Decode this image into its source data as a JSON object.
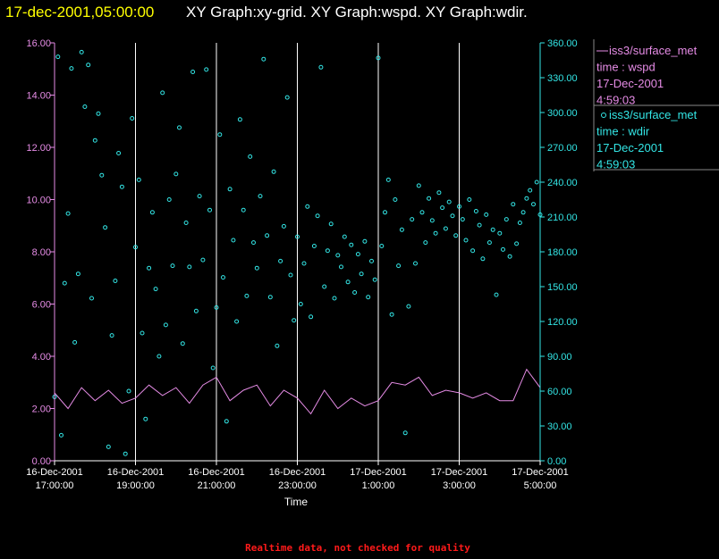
{
  "header": {
    "timestamp": "17-dec-2001,05:00:00",
    "graphs_text": "XY Graph:xy-grid.  XY Graph:wspd.  XY Graph:wdir."
  },
  "footer": {
    "quality_note": "Realtime data, not checked for quality"
  },
  "legend": [
    {
      "symbol": "line",
      "source": "iss3/surface_met",
      "series": "time : wspd",
      "date": "17-Dec-2001",
      "time": "4:59:03",
      "color": "#e68ce6"
    },
    {
      "symbol": "circle",
      "source": "iss3/surface_met",
      "series": "time : wdir",
      "date": "17-Dec-2001",
      "time": "4:59:03",
      "color": "#33e6e6"
    }
  ],
  "colors": {
    "background": "#000000",
    "left_axis": "#e68ce6",
    "right_axis": "#33e6e6",
    "grid": "#ffffff",
    "timestamp": "#ffff00",
    "quality_note": "#ff1a1a"
  },
  "chart_data": {
    "type": "scatter",
    "xlabel": "Time",
    "x_range": [
      "2001-12-16 17:00:00",
      "2001-12-17 05:00:00"
    ],
    "x_ticks": [
      {
        "t": "2001-12-16 17:00:00",
        "date": "16-Dec-2001",
        "time": "17:00:00"
      },
      {
        "t": "2001-12-16 19:00:00",
        "date": "16-Dec-2001",
        "time": "19:00:00"
      },
      {
        "t": "2001-12-16 21:00:00",
        "date": "16-Dec-2001",
        "time": "21:00:00"
      },
      {
        "t": "2001-12-16 23:00:00",
        "date": "16-Dec-2001",
        "time": "23:00:00"
      },
      {
        "t": "2001-12-17 01:00:00",
        "date": "17-Dec-2001",
        "time": "1:00:00"
      },
      {
        "t": "2001-12-17 03:00:00",
        "date": "17-Dec-2001",
        "time": "3:00:00"
      },
      {
        "t": "2001-12-17 05:00:00",
        "date": "17-Dec-2001",
        "time": "5:00:00"
      }
    ],
    "y_left": {
      "ylim": [
        0,
        16
      ],
      "ticks": [
        "0.00",
        "2.00",
        "4.00",
        "6.00",
        "8.00",
        "10.00",
        "12.00",
        "14.00",
        "16.00"
      ]
    },
    "y_right": {
      "ylim": [
        0,
        360
      ],
      "ticks": [
        "0.00",
        "30.00",
        "60.00",
        "90.00",
        "120.00",
        "150.00",
        "180.00",
        "210.00",
        "240.00",
        "270.00",
        "300.00",
        "330.00",
        "360.00"
      ]
    },
    "grid": "vertical",
    "series": [
      {
        "name": "time : wspd",
        "type": "line",
        "axis": "left",
        "points": [
          [
            "2001-12-16 17:00:00",
            2.6
          ],
          [
            "2001-12-16 17:20:00",
            2.0
          ],
          [
            "2001-12-16 17:40:00",
            2.8
          ],
          [
            "2001-12-16 18:00:00",
            2.3
          ],
          [
            "2001-12-16 18:20:00",
            2.7
          ],
          [
            "2001-12-16 18:40:00",
            2.2
          ],
          [
            "2001-12-16 19:00:00",
            2.4
          ],
          [
            "2001-12-16 19:20:00",
            2.9
          ],
          [
            "2001-12-16 19:40:00",
            2.5
          ],
          [
            "2001-12-16 20:00:00",
            2.8
          ],
          [
            "2001-12-16 20:20:00",
            2.2
          ],
          [
            "2001-12-16 20:40:00",
            2.9
          ],
          [
            "2001-12-16 21:00:00",
            3.2
          ],
          [
            "2001-12-16 21:20:00",
            2.3
          ],
          [
            "2001-12-16 21:40:00",
            2.7
          ],
          [
            "2001-12-16 22:00:00",
            2.9
          ],
          [
            "2001-12-16 22:20:00",
            2.1
          ],
          [
            "2001-12-16 22:40:00",
            2.7
          ],
          [
            "2001-12-16 23:00:00",
            2.4
          ],
          [
            "2001-12-16 23:20:00",
            1.8
          ],
          [
            "2001-12-16 23:40:00",
            2.7
          ],
          [
            "2001-12-17 00:00:00",
            2.0
          ],
          [
            "2001-12-17 00:20:00",
            2.4
          ],
          [
            "2001-12-17 00:40:00",
            2.1
          ],
          [
            "2001-12-17 01:00:00",
            2.3
          ],
          [
            "2001-12-17 01:20:00",
            3.0
          ],
          [
            "2001-12-17 01:40:00",
            2.9
          ],
          [
            "2001-12-17 02:00:00",
            3.2
          ],
          [
            "2001-12-17 02:20:00",
            2.5
          ],
          [
            "2001-12-17 02:40:00",
            2.7
          ],
          [
            "2001-12-17 03:00:00",
            2.6
          ],
          [
            "2001-12-17 03:20:00",
            2.4
          ],
          [
            "2001-12-17 03:40:00",
            2.6
          ],
          [
            "2001-12-17 04:00:00",
            2.3
          ],
          [
            "2001-12-17 04:20:00",
            2.3
          ],
          [
            "2001-12-17 04:40:00",
            3.5
          ],
          [
            "2001-12-17 05:00:00",
            2.8
          ]
        ]
      },
      {
        "name": "time : wdir",
        "type": "scatter",
        "axis": "right",
        "points": [
          [
            "2001-12-16 17:00:00",
            55
          ],
          [
            "2001-12-16 17:05:00",
            348
          ],
          [
            "2001-12-16 17:10:00",
            22
          ],
          [
            "2001-12-16 17:15:00",
            153
          ],
          [
            "2001-12-16 17:20:00",
            213
          ],
          [
            "2001-12-16 17:25:00",
            338
          ],
          [
            "2001-12-16 17:30:00",
            102
          ],
          [
            "2001-12-16 17:35:00",
            161
          ],
          [
            "2001-12-16 17:40:00",
            352
          ],
          [
            "2001-12-16 17:45:00",
            305
          ],
          [
            "2001-12-16 17:50:00",
            341
          ],
          [
            "2001-12-16 17:55:00",
            140
          ],
          [
            "2001-12-16 18:00:00",
            276
          ],
          [
            "2001-12-16 18:05:00",
            299
          ],
          [
            "2001-12-16 18:10:00",
            246
          ],
          [
            "2001-12-16 18:15:00",
            201
          ],
          [
            "2001-12-16 18:20:00",
            12
          ],
          [
            "2001-12-16 18:25:00",
            108
          ],
          [
            "2001-12-16 18:30:00",
            155
          ],
          [
            "2001-12-16 18:35:00",
            265
          ],
          [
            "2001-12-16 18:40:00",
            236
          ],
          [
            "2001-12-16 18:45:00",
            6
          ],
          [
            "2001-12-16 18:50:00",
            60
          ],
          [
            "2001-12-16 18:55:00",
            295
          ],
          [
            "2001-12-16 19:00:00",
            184
          ],
          [
            "2001-12-16 19:05:00",
            242
          ],
          [
            "2001-12-16 19:10:00",
            110
          ],
          [
            "2001-12-16 19:15:00",
            36
          ],
          [
            "2001-12-16 19:20:00",
            166
          ],
          [
            "2001-12-16 19:25:00",
            214
          ],
          [
            "2001-12-16 19:30:00",
            148
          ],
          [
            "2001-12-16 19:35:00",
            90
          ],
          [
            "2001-12-16 19:40:00",
            317
          ],
          [
            "2001-12-16 19:45:00",
            117
          ],
          [
            "2001-12-16 19:50:00",
            225
          ],
          [
            "2001-12-16 19:55:00",
            168
          ],
          [
            "2001-12-16 20:00:00",
            247
          ],
          [
            "2001-12-16 20:05:00",
            287
          ],
          [
            "2001-12-16 20:10:00",
            101
          ],
          [
            "2001-12-16 20:15:00",
            205
          ],
          [
            "2001-12-16 20:20:00",
            167
          ],
          [
            "2001-12-16 20:25:00",
            335
          ],
          [
            "2001-12-16 20:30:00",
            129
          ],
          [
            "2001-12-16 20:35:00",
            228
          ],
          [
            "2001-12-16 20:40:00",
            173
          ],
          [
            "2001-12-16 20:45:00",
            337
          ],
          [
            "2001-12-16 20:50:00",
            216
          ],
          [
            "2001-12-16 20:55:00",
            80
          ],
          [
            "2001-12-16 21:00:00",
            132
          ],
          [
            "2001-12-16 21:05:00",
            281
          ],
          [
            "2001-12-16 21:10:00",
            158
          ],
          [
            "2001-12-16 21:15:00",
            34
          ],
          [
            "2001-12-16 21:20:00",
            234
          ],
          [
            "2001-12-16 21:25:00",
            190
          ],
          [
            "2001-12-16 21:30:00",
            120
          ],
          [
            "2001-12-16 21:35:00",
            294
          ],
          [
            "2001-12-16 21:40:00",
            216
          ],
          [
            "2001-12-16 21:45:00",
            142
          ],
          [
            "2001-12-16 21:50:00",
            262
          ],
          [
            "2001-12-16 21:55:00",
            188
          ],
          [
            "2001-12-16 22:00:00",
            166
          ],
          [
            "2001-12-16 22:05:00",
            228
          ],
          [
            "2001-12-16 22:10:00",
            346
          ],
          [
            "2001-12-16 22:15:00",
            194
          ],
          [
            "2001-12-16 22:20:00",
            141
          ],
          [
            "2001-12-16 22:25:00",
            249
          ],
          [
            "2001-12-16 22:30:00",
            99
          ],
          [
            "2001-12-16 22:35:00",
            172
          ],
          [
            "2001-12-16 22:40:00",
            202
          ],
          [
            "2001-12-16 22:45:00",
            313
          ],
          [
            "2001-12-16 22:50:00",
            160
          ],
          [
            "2001-12-16 22:55:00",
            121
          ],
          [
            "2001-12-16 23:00:00",
            193
          ],
          [
            "2001-12-16 23:05:00",
            135
          ],
          [
            "2001-12-16 23:10:00",
            170
          ],
          [
            "2001-12-16 23:15:00",
            219
          ],
          [
            "2001-12-16 23:20:00",
            124
          ],
          [
            "2001-12-16 23:25:00",
            185
          ],
          [
            "2001-12-16 23:30:00",
            211
          ],
          [
            "2001-12-16 23:35:00",
            339
          ],
          [
            "2001-12-16 23:40:00",
            150
          ],
          [
            "2001-12-16 23:45:00",
            181
          ],
          [
            "2001-12-16 23:50:00",
            204
          ],
          [
            "2001-12-16 23:55:00",
            140
          ],
          [
            "2001-12-17 00:00:00",
            177
          ],
          [
            "2001-12-17 00:05:00",
            167
          ],
          [
            "2001-12-17 00:10:00",
            193
          ],
          [
            "2001-12-17 00:15:00",
            154
          ],
          [
            "2001-12-17 00:20:00",
            186
          ],
          [
            "2001-12-17 00:25:00",
            145
          ],
          [
            "2001-12-17 00:30:00",
            178
          ],
          [
            "2001-12-17 00:35:00",
            161
          ],
          [
            "2001-12-17 00:40:00",
            189
          ],
          [
            "2001-12-17 00:45:00",
            141
          ],
          [
            "2001-12-17 00:50:00",
            172
          ],
          [
            "2001-12-17 00:55:00",
            156
          ],
          [
            "2001-12-17 01:00:00",
            347
          ],
          [
            "2001-12-17 01:05:00",
            185
          ],
          [
            "2001-12-17 01:10:00",
            214
          ],
          [
            "2001-12-17 01:15:00",
            242
          ],
          [
            "2001-12-17 01:20:00",
            126
          ],
          [
            "2001-12-17 01:25:00",
            225
          ],
          [
            "2001-12-17 01:30:00",
            168
          ],
          [
            "2001-12-17 01:35:00",
            199
          ],
          [
            "2001-12-17 01:40:00",
            24
          ],
          [
            "2001-12-17 01:45:00",
            133
          ],
          [
            "2001-12-17 01:50:00",
            208
          ],
          [
            "2001-12-17 01:55:00",
            170
          ],
          [
            "2001-12-17 02:00:00",
            237
          ],
          [
            "2001-12-17 02:05:00",
            214
          ],
          [
            "2001-12-17 02:10:00",
            188
          ],
          [
            "2001-12-17 02:15:00",
            226
          ],
          [
            "2001-12-17 02:20:00",
            207
          ],
          [
            "2001-12-17 02:25:00",
            196
          ],
          [
            "2001-12-17 02:30:00",
            231
          ],
          [
            "2001-12-17 02:35:00",
            218
          ],
          [
            "2001-12-17 02:40:00",
            200
          ],
          [
            "2001-12-17 02:45:00",
            223
          ],
          [
            "2001-12-17 02:50:00",
            211
          ],
          [
            "2001-12-17 02:55:00",
            194
          ],
          [
            "2001-12-17 03:00:00",
            219
          ],
          [
            "2001-12-17 03:05:00",
            208
          ],
          [
            "2001-12-17 03:10:00",
            190
          ],
          [
            "2001-12-17 03:15:00",
            225
          ],
          [
            "2001-12-17 03:20:00",
            181
          ],
          [
            "2001-12-17 03:25:00",
            215
          ],
          [
            "2001-12-17 03:30:00",
            203
          ],
          [
            "2001-12-17 03:35:00",
            174
          ],
          [
            "2001-12-17 03:40:00",
            212
          ],
          [
            "2001-12-17 03:45:00",
            188
          ],
          [
            "2001-12-17 03:50:00",
            199
          ],
          [
            "2001-12-17 03:55:00",
            143
          ],
          [
            "2001-12-17 04:00:00",
            196
          ],
          [
            "2001-12-17 04:05:00",
            182
          ],
          [
            "2001-12-17 04:10:00",
            208
          ],
          [
            "2001-12-17 04:15:00",
            176
          ],
          [
            "2001-12-17 04:20:00",
            221
          ],
          [
            "2001-12-17 04:25:00",
            187
          ],
          [
            "2001-12-17 04:30:00",
            205
          ],
          [
            "2001-12-17 04:35:00",
            214
          ],
          [
            "2001-12-17 04:40:00",
            226
          ],
          [
            "2001-12-17 04:45:00",
            233
          ],
          [
            "2001-12-17 04:50:00",
            221
          ],
          [
            "2001-12-17 04:55:00",
            240
          ],
          [
            "2001-12-17 05:00:00",
            212
          ]
        ]
      }
    ]
  }
}
